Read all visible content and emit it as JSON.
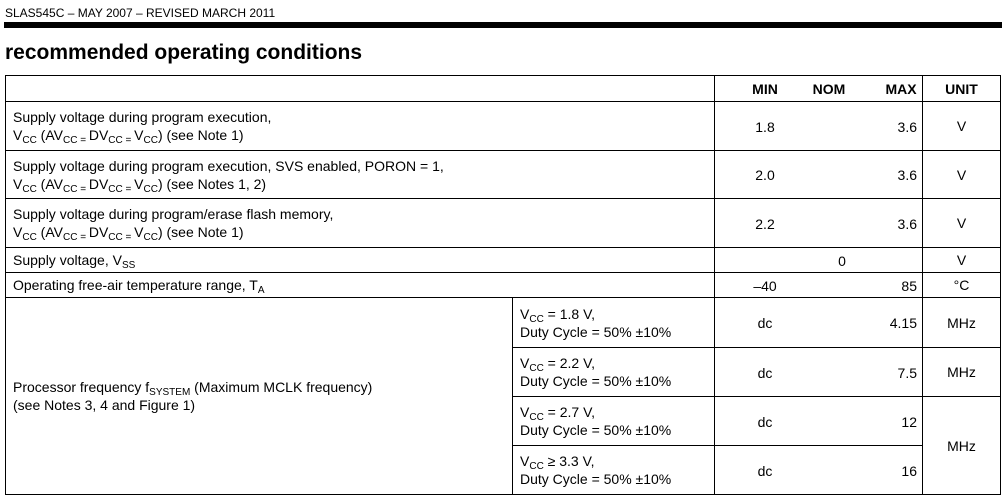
{
  "header": "SLAS545C – MAY 2007 – REVISED MARCH 2011",
  "title": "recommended operating conditions",
  "table": {
    "columns": [
      "MIN",
      "NOM",
      "MAX",
      "UNIT"
    ],
    "rows": [
      {
        "param": [
          [
            "Supply voltage during program execution,"
          ],
          [
            "V",
            {
              "sub": "CC"
            },
            " (AV",
            {
              "sub": "CC = "
            },
            "DV",
            {
              "sub": "CC = "
            },
            "V",
            {
              "sub": "CC"
            },
            ") (see Note 1)"
          ]
        ],
        "min": "1.8",
        "max": "3.6",
        "unit": "V"
      },
      {
        "param": [
          [
            "Supply voltage during program execution, SVS enabled, PORON = 1,"
          ],
          [
            "V",
            {
              "sub": "CC"
            },
            " (AV",
            {
              "sub": "CC = "
            },
            "DV",
            {
              "sub": "CC = "
            },
            "V",
            {
              "sub": "CC"
            },
            ") (see Notes 1, 2)"
          ]
        ],
        "min": "2.0",
        "max": "3.6",
        "unit": "V"
      },
      {
        "param": [
          [
            "Supply voltage during program/erase flash memory,"
          ],
          [
            "V",
            {
              "sub": "CC"
            },
            " (AV",
            {
              "sub": "CC = "
            },
            "DV",
            {
              "sub": "CC = "
            },
            "V",
            {
              "sub": "CC"
            },
            ") (see Note 1)"
          ]
        ],
        "min": "2.2",
        "max": "3.6",
        "unit": "V"
      },
      {
        "param": [
          [
            "Supply voltage, V",
            {
              "sub": "SS"
            }
          ]
        ],
        "nom": "0",
        "unit": "V"
      },
      {
        "param": [
          [
            "Operating free-air temperature range, T",
            {
              "sub": "A"
            }
          ]
        ],
        "min": "–40",
        "max": "85",
        "unit": "°C"
      }
    ],
    "freq": {
      "param": [
        [
          "Processor frequency f",
          {
            "sub": "SYSTEM"
          },
          " (Maximum MCLK frequency)"
        ],
        [
          "(see Notes 3, 4 and Figure 1)"
        ]
      ],
      "unit": "MHz",
      "conditions": [
        {
          "cond": [
            [
              "V",
              {
                "sub": "CC"
              },
              " = 1.8 V,"
            ],
            [
              "Duty Cycle = 50% ±10%"
            ]
          ],
          "min": "dc",
          "max": "4.15",
          "unit": "MHz"
        },
        {
          "cond": [
            [
              "V",
              {
                "sub": "CC"
              },
              " = 2.2 V,"
            ],
            [
              "Duty Cycle = 50% ±10%"
            ]
          ],
          "min": "dc",
          "max": "7.5",
          "unit": "MHz"
        },
        {
          "cond": [
            [
              "V",
              {
                "sub": "CC"
              },
              " = 2.7 V,"
            ],
            [
              "Duty Cycle = 50% ±10%"
            ]
          ],
          "min": "dc",
          "max": "12"
        },
        {
          "cond": [
            [
              "V",
              {
                "sub": "CC"
              },
              " ≥ 3.3 V,"
            ],
            [
              "Duty Cycle = 50% ±10%"
            ]
          ],
          "min": "dc",
          "max": "16"
        }
      ]
    }
  }
}
